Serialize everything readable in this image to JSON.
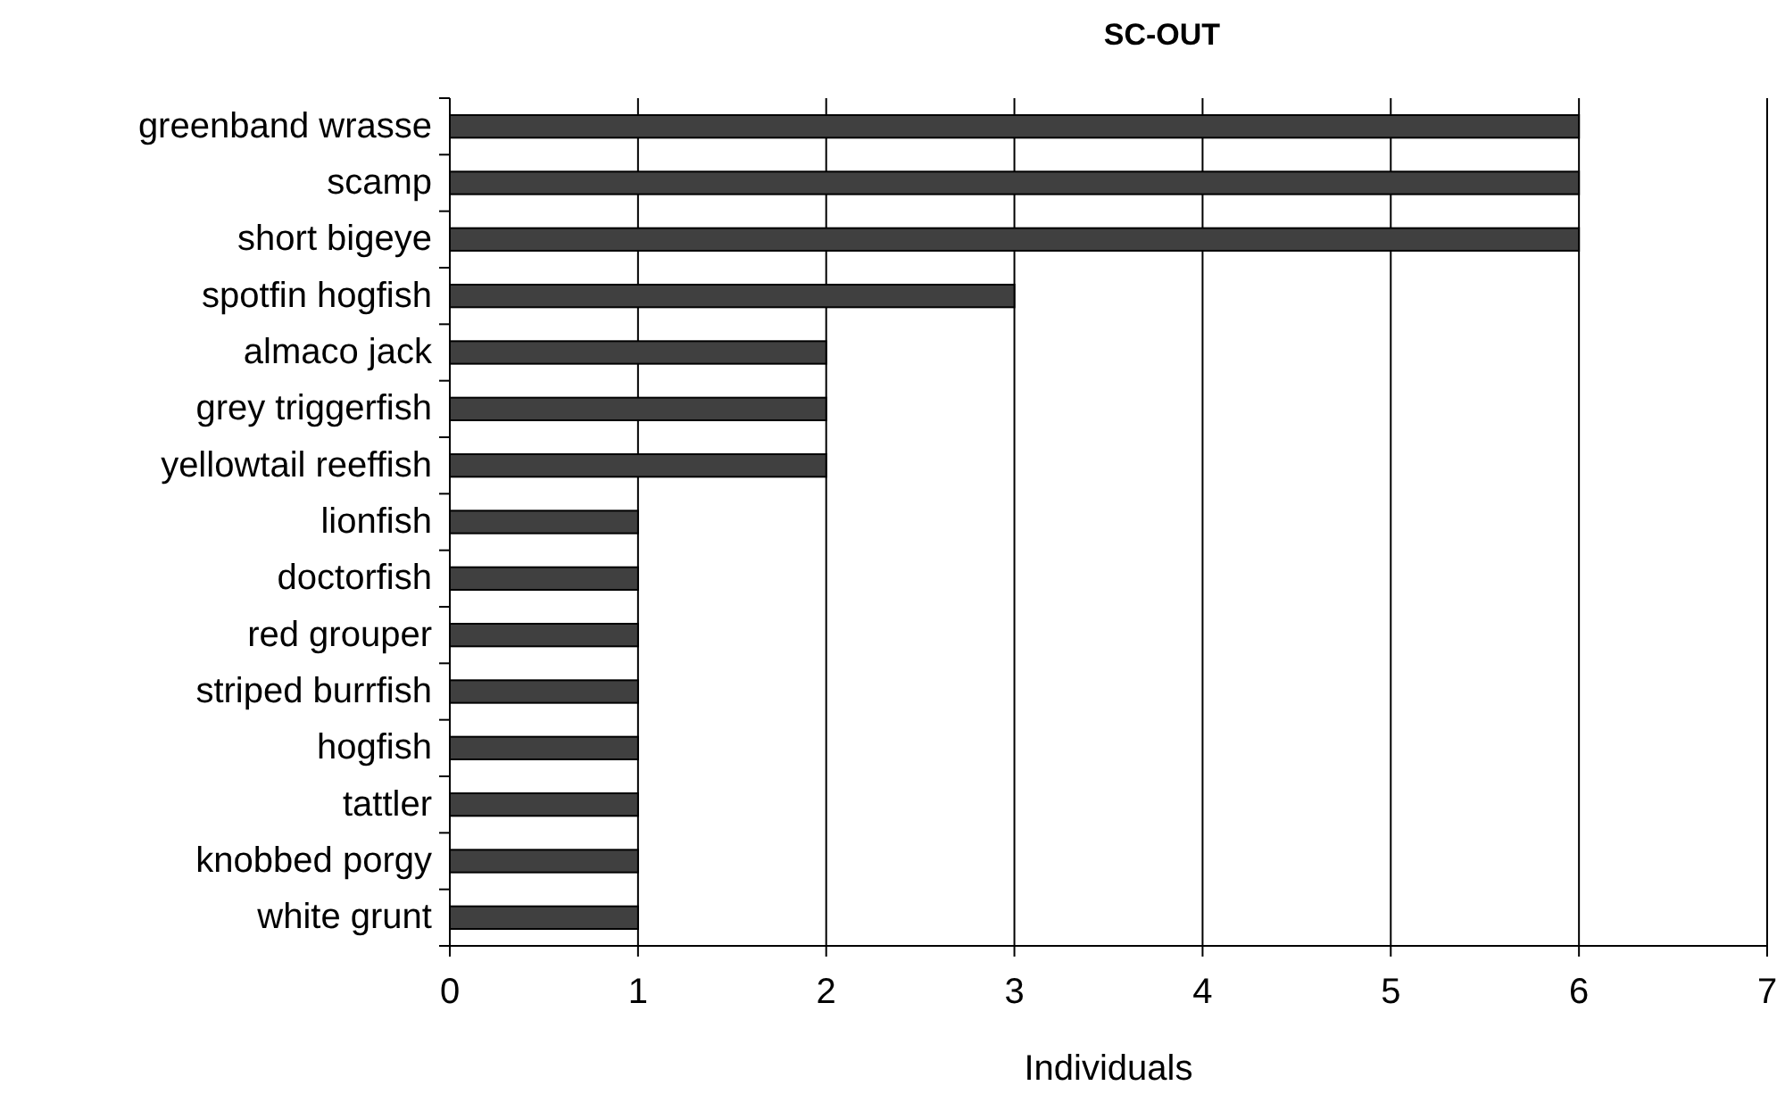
{
  "chart_data": {
    "type": "bar",
    "title": "SC-OUT",
    "xlabel": "Individuals",
    "orientation": "horizontal",
    "categories": [
      "greenband wrasse",
      "scamp",
      "short bigeye",
      "spotfin hogfish",
      "almaco jack",
      "grey triggerfish",
      "yellowtail reeffish",
      "lionfish",
      "doctorfish",
      "red grouper",
      "striped burrfish",
      "hogfish",
      "tattler",
      "knobbed porgy",
      "white grunt"
    ],
    "values": [
      6,
      6,
      6,
      3,
      2,
      2,
      2,
      1,
      1,
      1,
      1,
      1,
      1,
      1,
      1
    ],
    "color": "#404040",
    "xlim": [
      0,
      7
    ],
    "xticks": [
      0,
      1,
      2,
      3,
      4,
      5,
      6,
      7
    ],
    "grid": "x"
  }
}
